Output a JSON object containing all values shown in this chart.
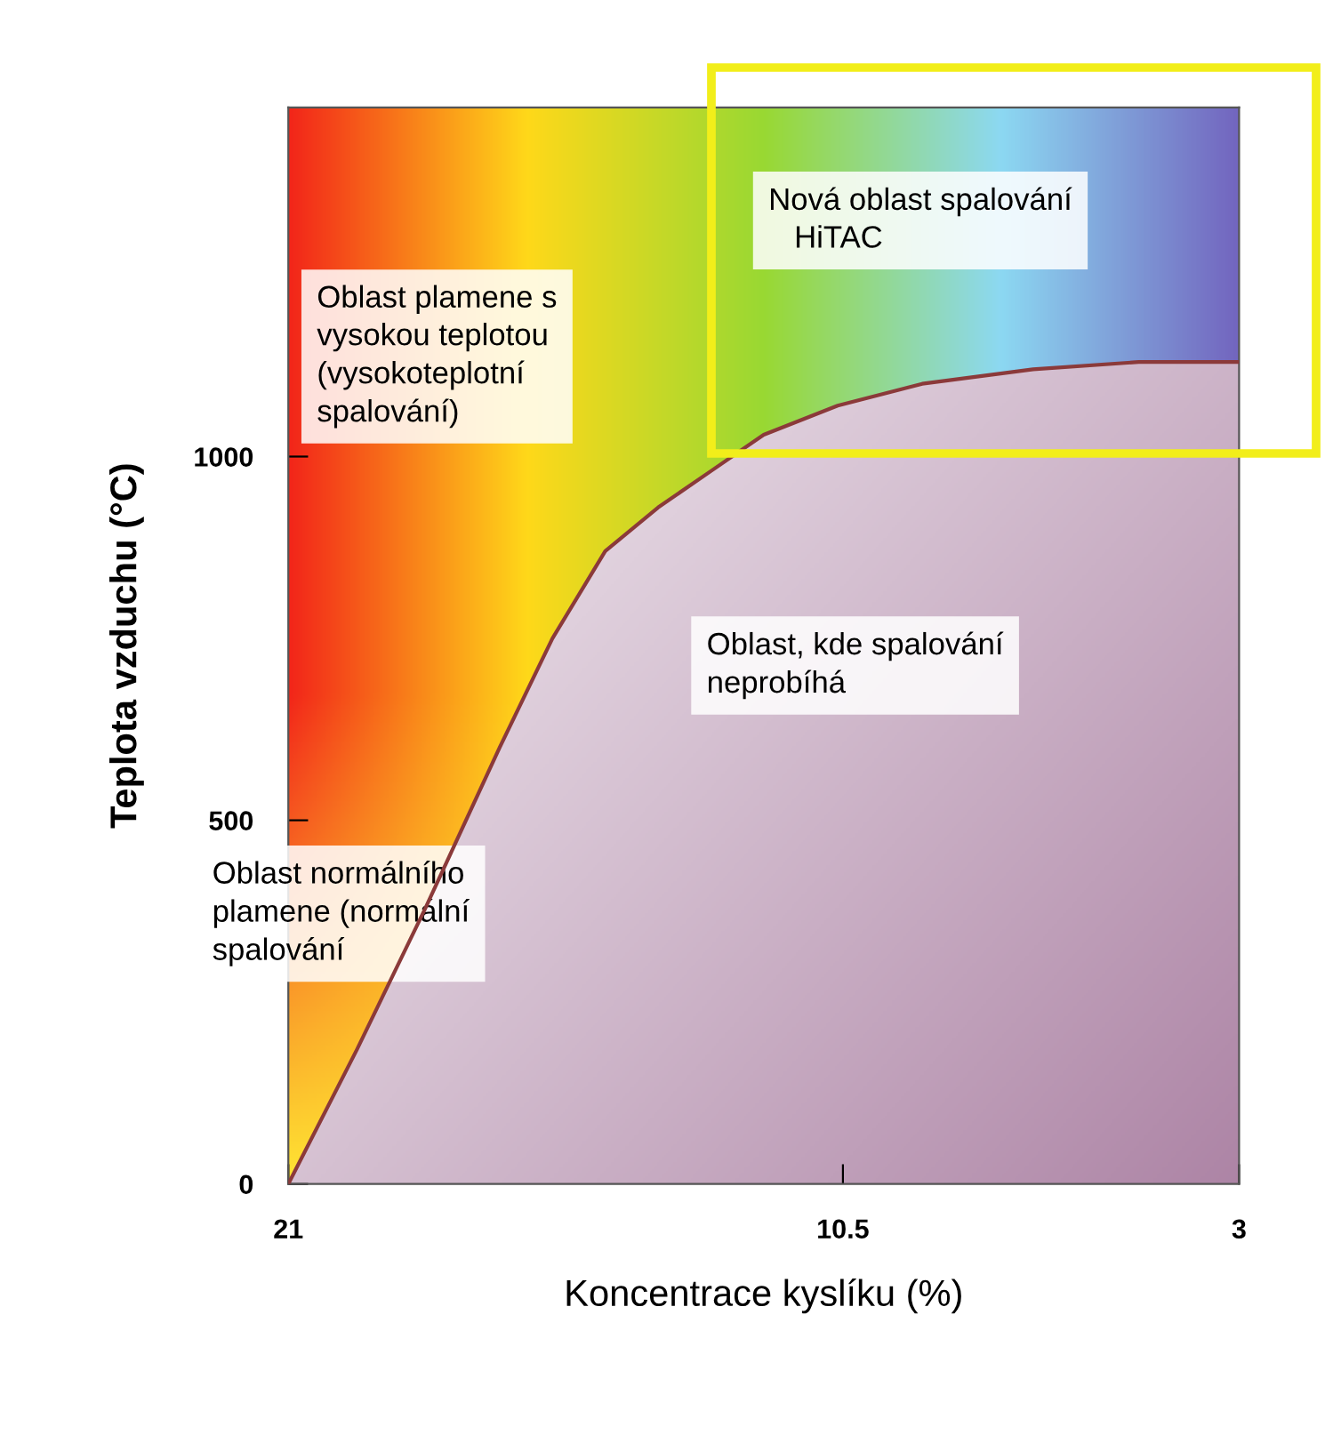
{
  "chart_data": {
    "type": "line",
    "xlabel": "Koncentrace kyslíku (%)",
    "ylabel": "Teplota vzduchu (°C)",
    "x": [
      21,
      19.7,
      18.4,
      17,
      16,
      15,
      14,
      13,
      12,
      10.6,
      9,
      6.9,
      4.9,
      3
    ],
    "values": [
      0,
      185,
      380,
      600,
      750,
      870,
      930,
      980,
      1030,
      1070,
      1100,
      1120,
      1130,
      1130
    ],
    "color": "#8b3a3a",
    "xlim": [
      21,
      3
    ],
    "xticks": [
      21,
      10.5,
      3
    ],
    "ylim": [
      0,
      1480
    ],
    "yticks": [
      0,
      500,
      1000
    ],
    "grid": false,
    "marker": "none",
    "line_style": "solid",
    "annotations": [
      "Oblast plamene s\nvysokou teplotou\n(vysokoteplotní\nspalování)",
      "Nová oblast spalování\n   HiTAC",
      "Oblast, kde spalování\nneprobíhá",
      "Oblast normálního\nplamene (normální\nspalování"
    ]
  }
}
